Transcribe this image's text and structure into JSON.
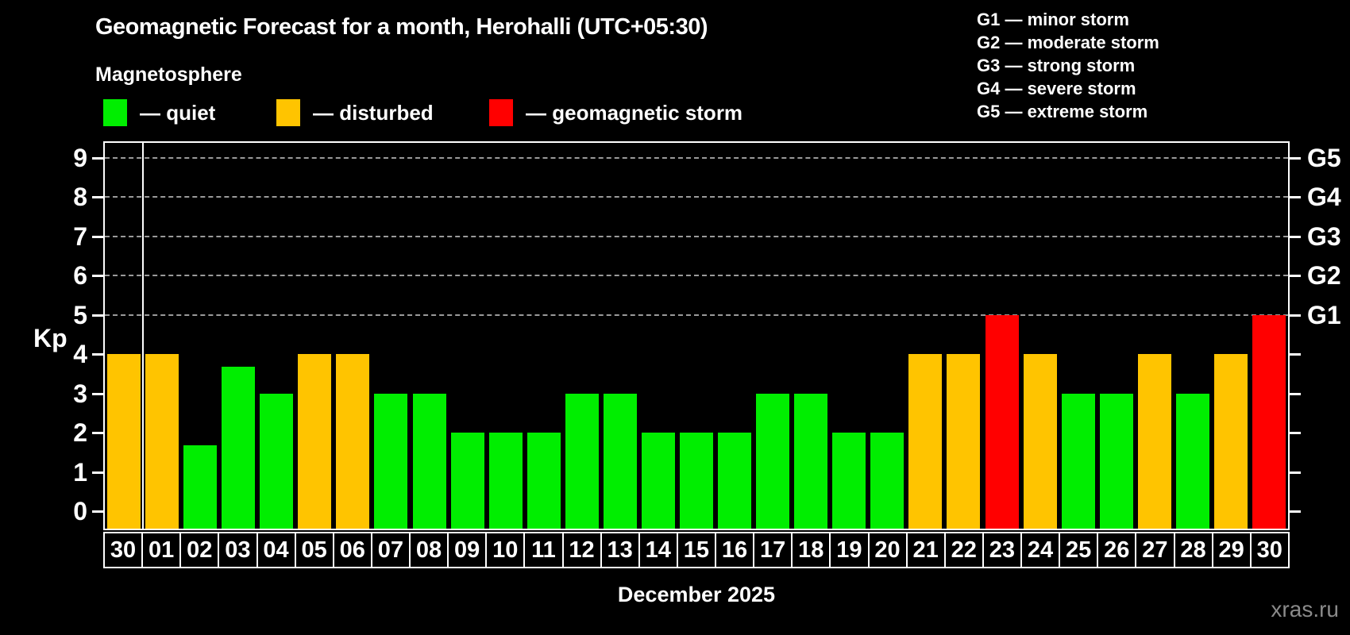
{
  "title": "Geomagnetic Forecast for a month, Herohalli (UTC+05:30)",
  "subtitle": "Magnetosphere",
  "legend": {
    "items": [
      {
        "label": "— quiet",
        "status": "quiet",
        "color": "#00ee00"
      },
      {
        "label": "— disturbed",
        "status": "disturbed",
        "color": "#ffc400"
      },
      {
        "label": "— geomagnetic storm",
        "status": "storm",
        "color": "#ff0000"
      }
    ]
  },
  "storm_scale_legend": {
    "lines": [
      "G1 — minor storm",
      "G2 — moderate storm",
      "G3 — strong storm",
      "G4 — severe storm",
      "G5 — extreme storm"
    ]
  },
  "chart_data": {
    "type": "bar",
    "title": "Geomagnetic Forecast for a month, Herohalli (UTC+05:30)",
    "ylabel": "Kp",
    "xlabel": "December 2025",
    "ylim": [
      0,
      9
    ],
    "yticks": [
      0,
      1,
      2,
      3,
      4,
      5,
      6,
      7,
      8,
      9
    ],
    "gridlines_at": [
      5,
      6,
      7,
      8,
      9
    ],
    "grid": "dashed horizontal lines at Kp 5-9",
    "legend_position": "top",
    "right_axis": [
      {
        "label": "G5",
        "kp": 9
      },
      {
        "label": "G4",
        "kp": 8
      },
      {
        "label": "G3",
        "kp": 7
      },
      {
        "label": "G2",
        "kp": 6
      },
      {
        "label": "G1",
        "kp": 5
      }
    ],
    "categories": [
      "30",
      "01",
      "02",
      "03",
      "04",
      "05",
      "06",
      "07",
      "08",
      "09",
      "10",
      "11",
      "12",
      "13",
      "14",
      "15",
      "16",
      "17",
      "18",
      "19",
      "20",
      "21",
      "22",
      "23",
      "24",
      "25",
      "26",
      "27",
      "28",
      "29",
      "30"
    ],
    "values": [
      4,
      4,
      1.67,
      3.67,
      3,
      4,
      4,
      3,
      3,
      2,
      2,
      2,
      3,
      3,
      2,
      2,
      2,
      3,
      3,
      2,
      2,
      4,
      4,
      5,
      4,
      3,
      3,
      4,
      3,
      4,
      5
    ],
    "statuses": [
      "disturbed",
      "disturbed",
      "quiet",
      "quiet",
      "quiet",
      "disturbed",
      "disturbed",
      "quiet",
      "quiet",
      "quiet",
      "quiet",
      "quiet",
      "quiet",
      "quiet",
      "quiet",
      "quiet",
      "quiet",
      "quiet",
      "quiet",
      "quiet",
      "quiet",
      "disturbed",
      "disturbed",
      "storm",
      "disturbed",
      "quiet",
      "quiet",
      "disturbed",
      "quiet",
      "disturbed",
      "storm"
    ],
    "month_separator_after_index": 0,
    "colors": {
      "quiet": "#00ee00",
      "disturbed": "#ffc400",
      "storm": "#ff0000"
    }
  },
  "watermark": "xras.ru"
}
